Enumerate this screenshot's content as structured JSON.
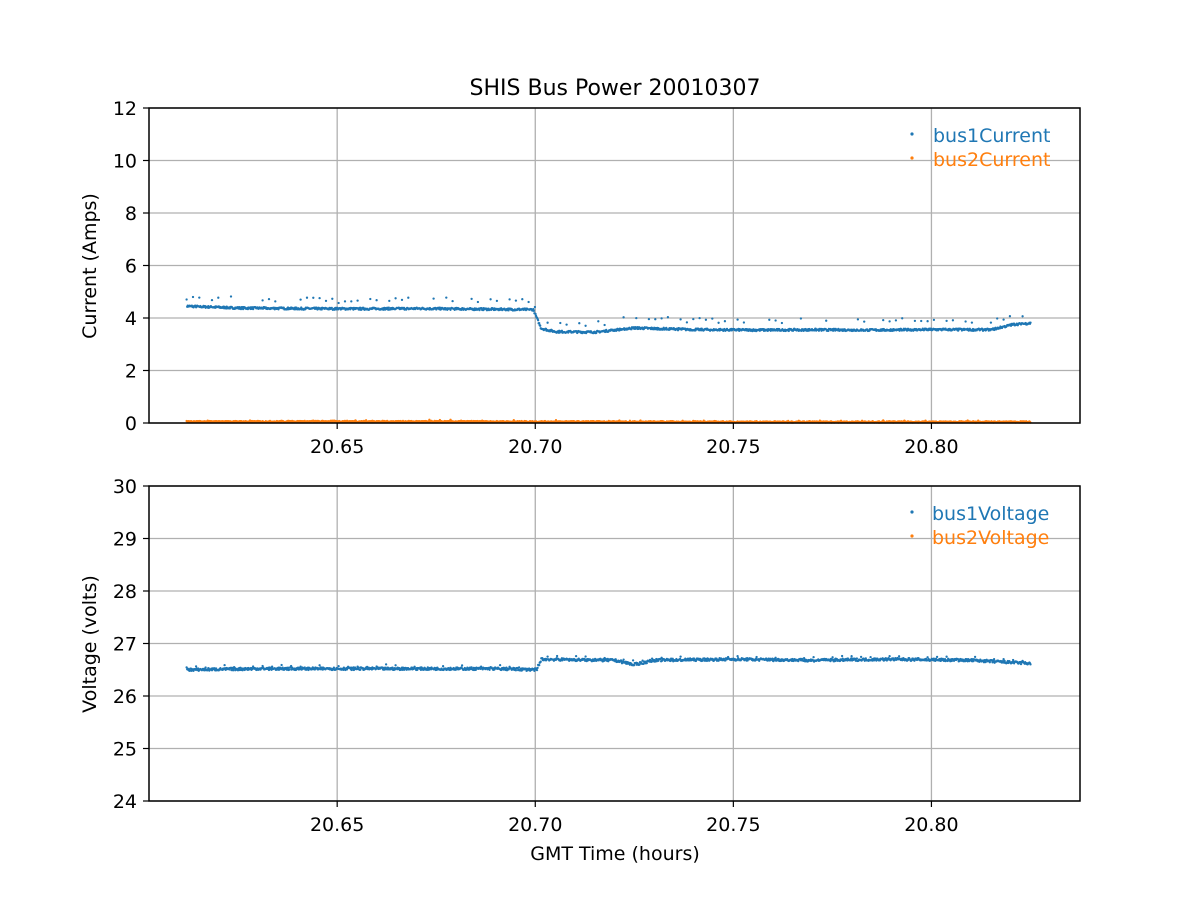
{
  "figure": {
    "title": "SHIS Bus Power 20010307",
    "background": "#ffffff"
  },
  "colors": {
    "series1": "#1f77b4",
    "series2": "#ff7f0e",
    "grid": "#b0b0b0",
    "axis": "#000000"
  },
  "chart_data": [
    {
      "type": "scatter",
      "title": "SHIS Bus Power 20010307",
      "xlabel": "",
      "ylabel": "Current (Amps)",
      "xlim": [
        20.6025,
        20.8375
      ],
      "ylim": [
        0,
        12
      ],
      "xticks": [
        20.65,
        20.7,
        20.75,
        20.8
      ],
      "xtick_labels": [
        "20.65",
        "20.70",
        "20.75",
        "20.80"
      ],
      "yticks": [
        0,
        2,
        4,
        6,
        8,
        10,
        12
      ],
      "ytick_labels": [
        "0",
        "2",
        "4",
        "6",
        "8",
        "10",
        "12"
      ],
      "grid": true,
      "legend_position": "top-right",
      "series": [
        {
          "name": "bus1Current",
          "x": [
            20.612,
            20.625,
            20.64,
            20.655,
            20.67,
            20.685,
            20.6995,
            20.7015,
            20.705,
            20.715,
            20.725,
            20.74,
            20.755,
            20.77,
            20.785,
            20.8,
            20.815,
            20.8205,
            20.825
          ],
          "y": [
            4.45,
            4.38,
            4.36,
            4.35,
            4.36,
            4.34,
            4.32,
            3.6,
            3.48,
            3.46,
            3.62,
            3.56,
            3.54,
            3.55,
            3.54,
            3.56,
            3.55,
            3.75,
            3.8
          ],
          "noise": 0.04,
          "spike_offset": 0.35,
          "spike_every": 12
        },
        {
          "name": "bus2Current",
          "x": [
            20.612,
            20.65,
            20.7,
            20.75,
            20.8,
            20.825
          ],
          "y": [
            0.05,
            0.06,
            0.05,
            0.04,
            0.04,
            0.04
          ],
          "noise": 0.025,
          "spike_offset": 0.04,
          "spike_every": 20
        }
      ]
    },
    {
      "type": "scatter",
      "title": "",
      "xlabel": "GMT Time (hours)",
      "ylabel": "Voltage (volts)",
      "xlim": [
        20.6025,
        20.8375
      ],
      "ylim": [
        24,
        30
      ],
      "xticks": [
        20.65,
        20.7,
        20.75,
        20.8
      ],
      "xtick_labels": [
        "20.65",
        "20.70",
        "20.75",
        "20.80"
      ],
      "yticks": [
        24,
        25,
        26,
        27,
        28,
        29,
        30
      ],
      "ytick_labels": [
        "24",
        "25",
        "26",
        "27",
        "28",
        "29",
        "30"
      ],
      "grid": true,
      "legend_position": "top-right",
      "series": [
        {
          "name": "bus1Voltage",
          "x": [
            20.612,
            20.63,
            20.65,
            20.67,
            20.69,
            20.7005,
            20.7015,
            20.72,
            20.725,
            20.73,
            20.75,
            20.77,
            20.79,
            20.81,
            20.825
          ],
          "y": [
            26.5,
            26.52,
            26.52,
            26.52,
            26.52,
            26.5,
            26.7,
            26.68,
            26.6,
            26.68,
            26.7,
            26.68,
            26.7,
            26.68,
            26.62
          ],
          "noise": 0.025,
          "spike_offset": 0.05,
          "spike_every": 18
        },
        {
          "name": "bus2Voltage",
          "x": [],
          "y": [],
          "noise": 0,
          "spike_offset": 0,
          "spike_every": 0
        }
      ]
    }
  ]
}
